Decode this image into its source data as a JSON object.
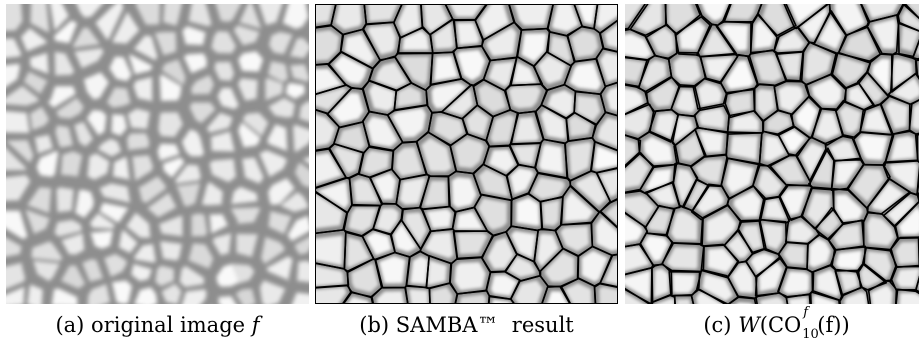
{
  "figure": {
    "panels": [
      {
        "id": "a",
        "caption_label": "(a)",
        "caption_text": "original image",
        "caption_var": "f",
        "style": "grayscale-texture"
      },
      {
        "id": "b",
        "caption_label": "(b)",
        "caption_text": "SAMBA™  result",
        "style": "segmented-outlines"
      },
      {
        "id": "c",
        "caption_label": "(c)",
        "caption_math": {
          "W": "W",
          "lpar": "(",
          "CO": "CO",
          "sup": "f",
          "sub": "10",
          "inner": "(f))"
        },
        "style": "watershed-outlines"
      }
    ],
    "colors": {
      "cell_light": "#f4f4f4",
      "boundary_gray": "#8c8c8c",
      "outline_black": "#000000",
      "background": "#ffffff"
    }
  }
}
